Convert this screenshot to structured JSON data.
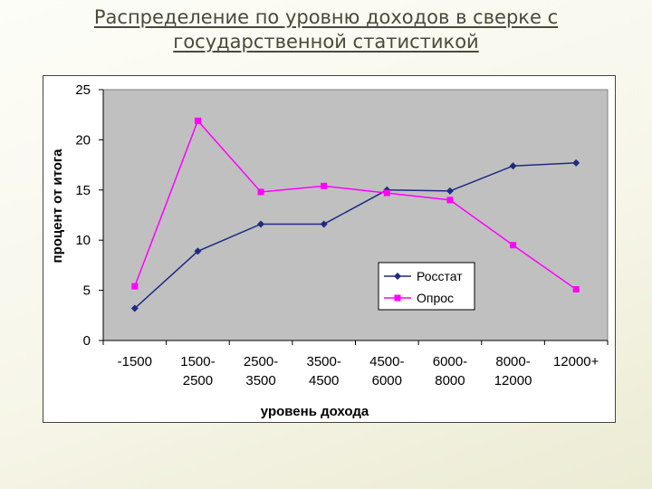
{
  "slide": {
    "title_line1": "Распределение по уровню доходов в сверке с",
    "title_line2": "государственной статистикой"
  },
  "chart_data": {
    "type": "line",
    "categories": [
      [
        "-1500"
      ],
      [
        "1500-",
        "2500"
      ],
      [
        "2500-",
        "3500"
      ],
      [
        "3500-",
        "4500"
      ],
      [
        "4500-",
        "6000"
      ],
      [
        "6000-",
        "8000"
      ],
      [
        "8000-",
        "12000"
      ],
      [
        "12000+"
      ]
    ],
    "series": [
      {
        "name": "Росстат",
        "color": "#1f2a80",
        "marker": "diamond",
        "values": [
          3.2,
          8.9,
          11.6,
          11.6,
          15.0,
          14.9,
          17.4,
          17.7
        ]
      },
      {
        "name": "Опрос",
        "color": "#ff00ff",
        "marker": "square",
        "values": [
          5.4,
          21.9,
          14.8,
          15.4,
          14.7,
          14.0,
          9.5,
          5.1
        ]
      }
    ],
    "xlabel": "уровень дохода",
    "ylabel": "процент от итога",
    "ylim": [
      0,
      25
    ],
    "yticks": [
      0,
      5,
      10,
      15,
      20,
      25
    ],
    "plot_background": "#c0c0c0",
    "grid": false,
    "legend_position": "inside-right"
  }
}
